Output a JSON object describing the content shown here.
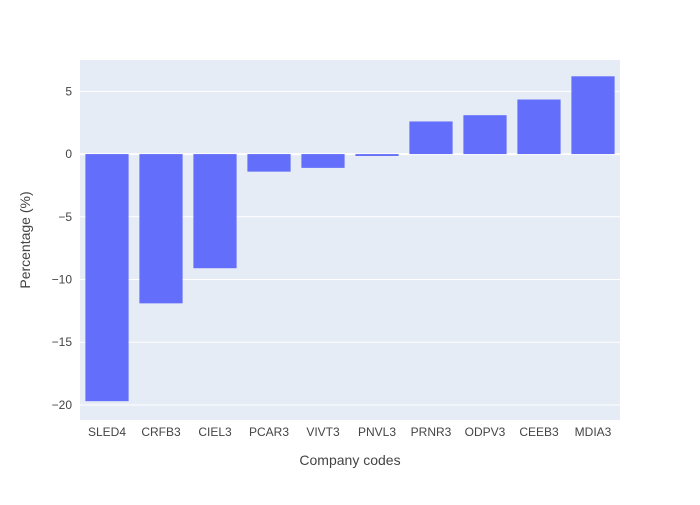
{
  "colors": {
    "bar": "#636efa",
    "plot_background": "#e5ecf6",
    "grid": "#ffffff",
    "text": "#444444"
  },
  "chart_data": {
    "type": "bar",
    "categories": [
      "SLED4",
      "CRFB3",
      "CIEL3",
      "PCAR3",
      "VIVT3",
      "PNVL3",
      "PRNR3",
      "ODPV3",
      "CEEB3",
      "MDIA3"
    ],
    "values": [
      -19.7,
      -11.9,
      -9.1,
      -1.4,
      -1.1,
      -0.15,
      2.6,
      3.1,
      4.35,
      6.2
    ],
    "title": "",
    "xlabel": "Company codes",
    "ylabel": "Percentage (%)",
    "ylim": [
      -21.2,
      7.5
    ],
    "yticks": [
      -20,
      -15,
      -10,
      -5,
      0,
      5
    ],
    "grid": true,
    "legend": "none"
  }
}
